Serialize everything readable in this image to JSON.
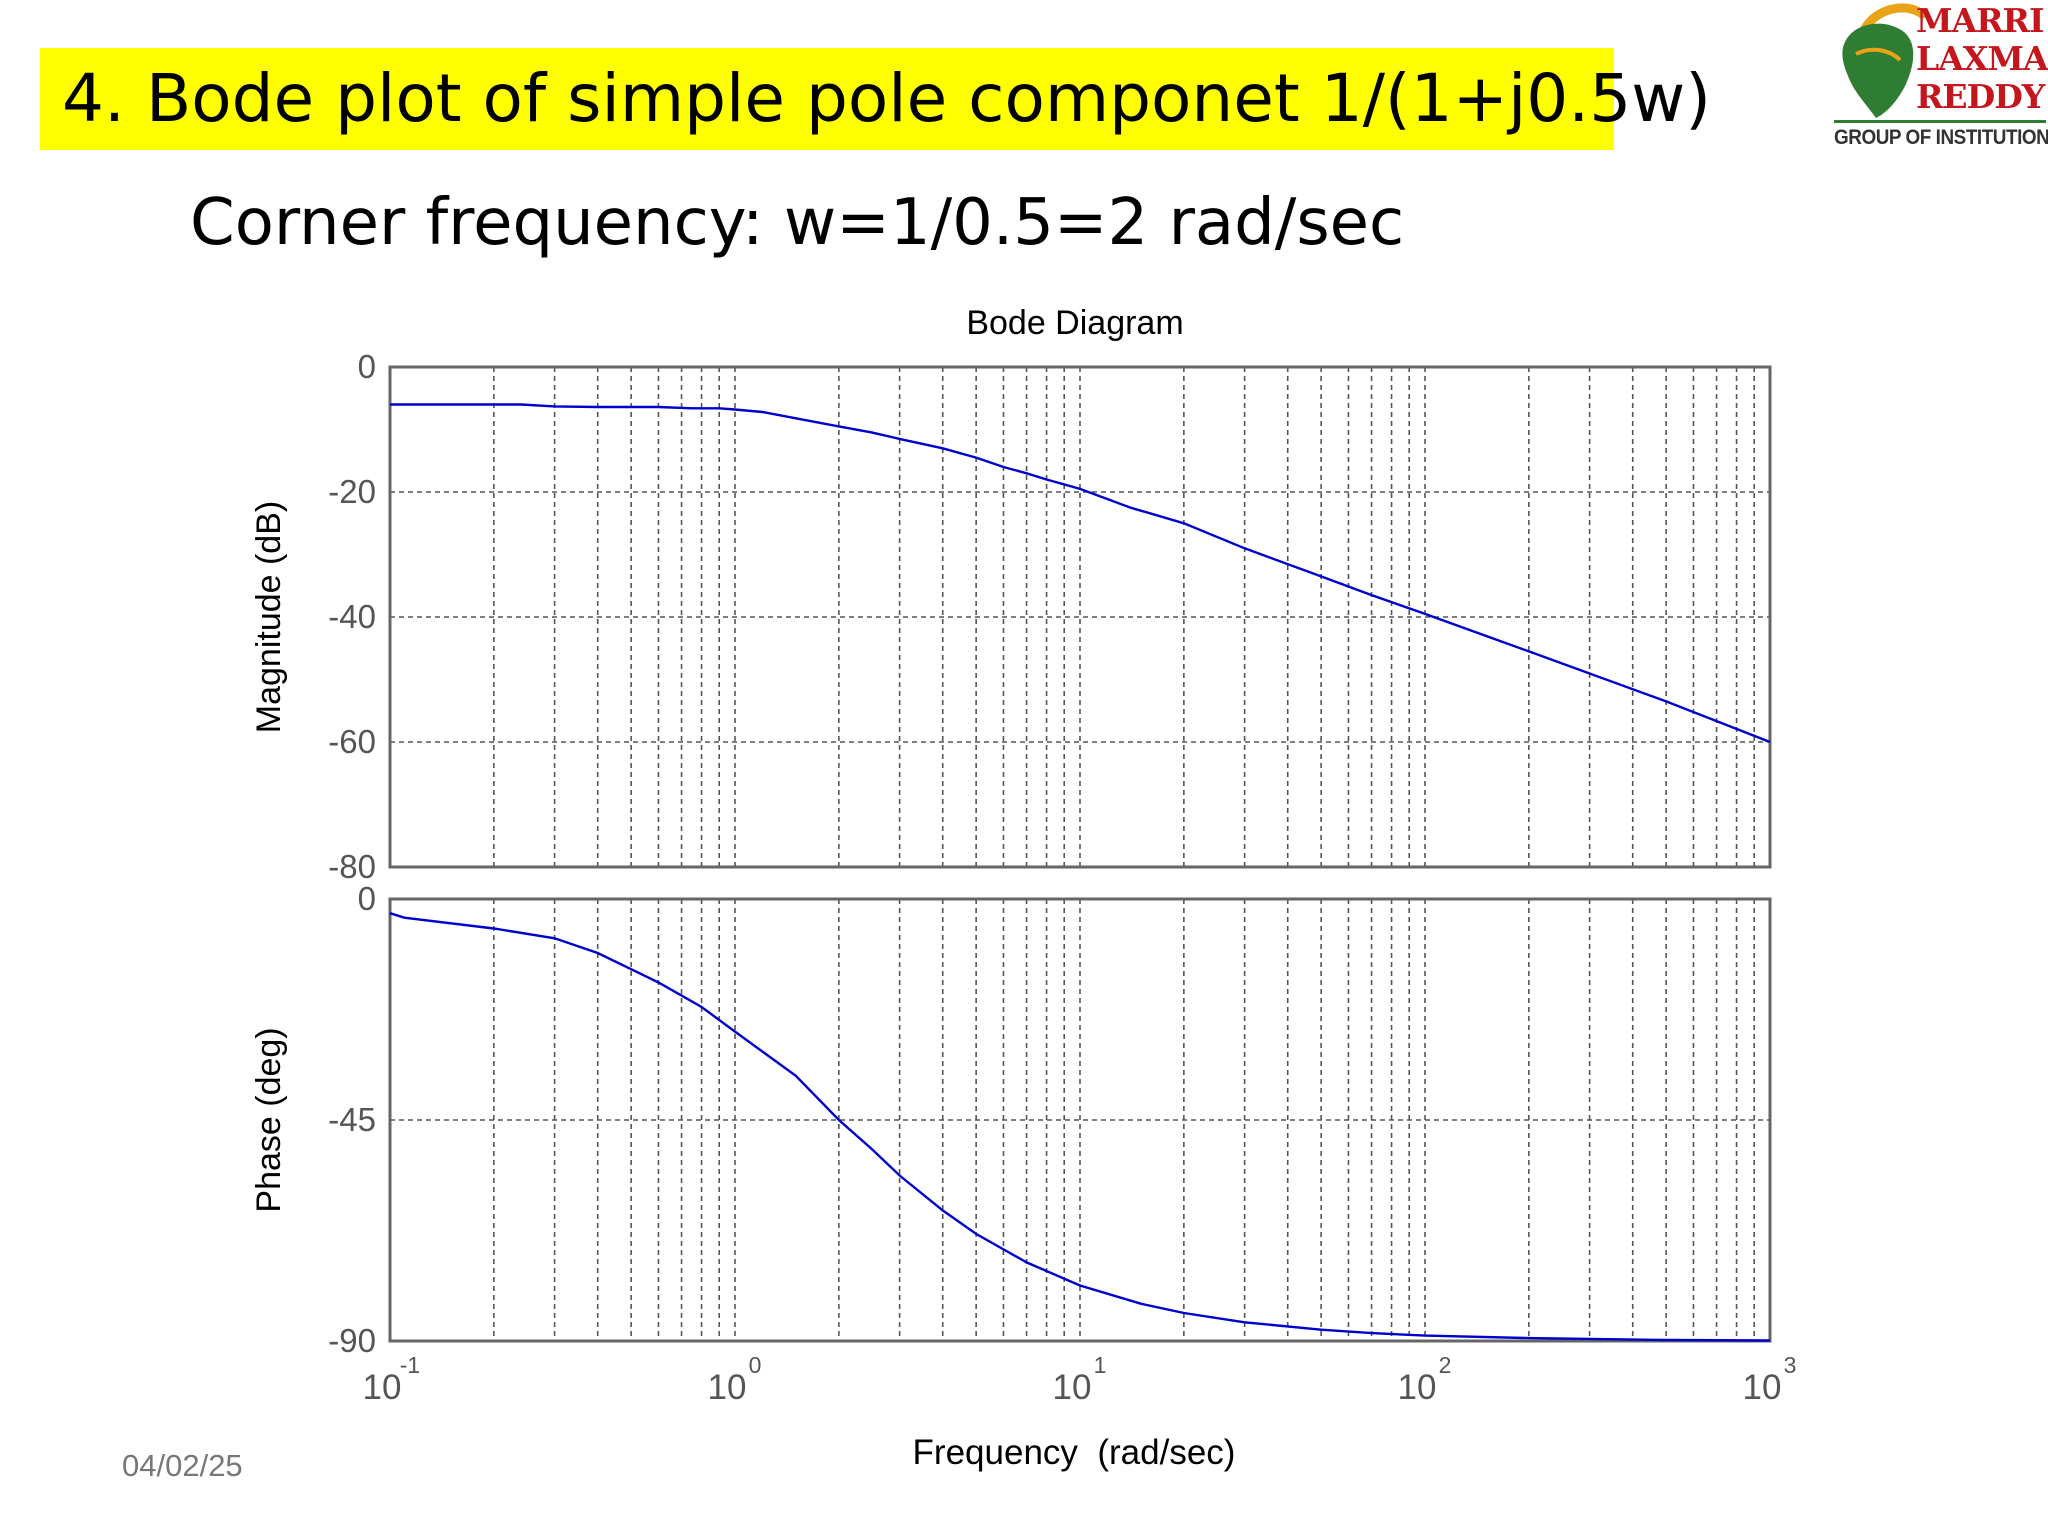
{
  "slide": {
    "title": "4. Bode plot of simple pole componet 1/(1+j0.5w)",
    "subtitle": "Corner frequency: w=1/0.5=2 rad/sec",
    "date": "04/02/25"
  },
  "logo": {
    "lines": [
      "MARRI",
      "LAXMAN",
      "REDDY"
    ],
    "tagline": "GROUP OF INSTITUTIONS",
    "colors": {
      "text": "#c4161c",
      "map": "#2e7d32",
      "ring": "#e8a317"
    }
  },
  "chart_data": {
    "type": "line",
    "title": "Bode Diagram",
    "xlabel": "Frequency  (rad/sec)",
    "x_scale": "log",
    "xlim": [
      0.1,
      1000
    ],
    "x_ticks": [
      {
        "value": 0.1,
        "base": "10",
        "exp": "-1"
      },
      {
        "value": 1,
        "base": "10",
        "exp": "0"
      },
      {
        "value": 10,
        "base": "10",
        "exp": "1"
      },
      {
        "value": 100,
        "base": "10",
        "exp": "2"
      },
      {
        "value": 1000,
        "base": "10",
        "exp": "3"
      }
    ],
    "grid": true,
    "line_color": "#0000cc",
    "panels": [
      {
        "name": "magnitude",
        "ylabel": "Magnitude (dB)",
        "ylim": [
          -80,
          0
        ],
        "y_ticks": [
          0,
          -20,
          -40,
          -60,
          -80
        ],
        "x": [
          0.1,
          0.15,
          0.24,
          0.3,
          0.4,
          0.6,
          0.75,
          0.9,
          1,
          1.2,
          1.5,
          2,
          2.5,
          3,
          4,
          5,
          6,
          7,
          8,
          10,
          14,
          20,
          30,
          50,
          70,
          100,
          200,
          500,
          1000
        ],
        "values": [
          -6.0,
          -6.0,
          -6.0,
          -6.3,
          -6.4,
          -6.4,
          -6.6,
          -6.6,
          -6.8,
          -7.2,
          -8.2,
          -9.5,
          -10.5,
          -11.5,
          -13.0,
          -14.5,
          -16.0,
          -17.0,
          -18.0,
          -19.5,
          -22.5,
          -25.0,
          -29.0,
          -33.5,
          -36.5,
          -39.5,
          -45.5,
          -53.5,
          -60.0
        ]
      },
      {
        "name": "phase",
        "ylabel": "Phase (deg)",
        "ylim": [
          -90,
          0
        ],
        "y_ticks": [
          0,
          -45,
          -90
        ],
        "x": [
          0.1,
          0.11,
          0.2,
          0.3,
          0.4,
          0.6,
          0.8,
          1,
          1.5,
          2,
          2.5,
          3,
          4,
          5,
          7,
          10,
          15,
          20,
          30,
          50,
          70,
          100,
          200,
          500,
          1000
        ],
        "values": [
          -2.9,
          -3.8,
          -6.0,
          -8.0,
          -11.0,
          -17.0,
          -22.0,
          -27.0,
          -36.0,
          -45.0,
          -51.0,
          -56.3,
          -63.4,
          -68.2,
          -74.0,
          -78.7,
          -82.4,
          -84.3,
          -86.2,
          -87.7,
          -88.4,
          -88.9,
          -89.4,
          -89.8,
          -89.9
        ]
      }
    ]
  }
}
